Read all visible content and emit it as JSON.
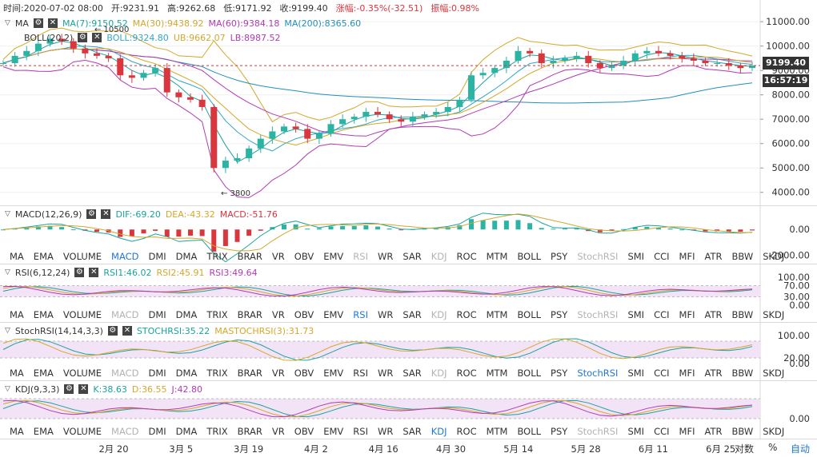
{
  "info": {
    "time": "时间:2020-07-02 08:00",
    "open": "开:9231.91",
    "high": "高:9262.68",
    "low": "低:9171.92",
    "close": "收:9199.40",
    "change": "涨幅:-0.35%(-32.51)",
    "amplitude": "振幅:0.98%"
  },
  "ma_legend": {
    "name": "MA",
    "ma7": "MA(7):9150.52",
    "ma30": "MA(30):9438.92",
    "ma60": "MA(60):9384.18",
    "ma200": "MA(200):8365.60"
  },
  "boll_legend": {
    "name": "BOLL(20,2)",
    "boll": "BOLL:9324.80",
    "ub": "UB:9662.07",
    "lb": "LB:8987.52"
  },
  "annotations": {
    "high": "← 10500",
    "low": "← 3800"
  },
  "price_tag": "9199.40",
  "time_tag": "16:57:19",
  "macd_legend": {
    "name": "MACD(12,26,9)",
    "dif": "DIF:-69.20",
    "dea": "DEA:-43.32",
    "macd": "MACD:-51.76"
  },
  "rsi_legend": {
    "name": "RSI(6,12,24)",
    "rsi1": "RSI1:46.02",
    "rsi2": "RSI2:45.91",
    "rsi3": "RSI3:49.64"
  },
  "stoch_legend": {
    "name": "StochRSI(14,14,3,3)",
    "stoch": "STOCHRSI:35.22",
    "ma": "MASTOCHRSI(3):31.73"
  },
  "kdj_legend": {
    "name": "KDJ(9,3,3)",
    "k": "K:38.63",
    "d": "D:36.55",
    "j": "J:42.80"
  },
  "tab_rows": [
    {
      "active": "MACD",
      "disabled": [
        "RSI",
        "KDJ",
        "StochRSI"
      ]
    },
    {
      "active": "RSI",
      "disabled": [
        "MACD",
        "KDJ",
        "StochRSI"
      ]
    },
    {
      "active": "StochRSI",
      "disabled": [
        "MACD",
        "KDJ"
      ]
    },
    {
      "active": "KDJ",
      "disabled": [
        "MACD",
        "StochRSI"
      ]
    }
  ],
  "tab_labels": [
    "MA",
    "EMA",
    "VOLUME",
    "MACD",
    "DMI",
    "DMA",
    "TRIX",
    "BRAR",
    "VR",
    "OBV",
    "EMV",
    "RSI",
    "WR",
    "SAR",
    "KDJ",
    "ROC",
    "MTM",
    "BOLL",
    "PSY",
    "StochRSI",
    "SMI",
    "CCI",
    "MFI",
    "ATR",
    "BBW",
    "SKDJ"
  ],
  "bottom": {
    "log": "对数",
    "percent": "%",
    "auto": "自动"
  },
  "colors": {
    "up": "#2bb3a3",
    "down": "#d9363e",
    "ma7": "#1ba39c",
    "ma30": "#d4a72c",
    "ma60": "#b23ab5",
    "ma200": "#1f8fbf",
    "boll": "#30a6c9",
    "link": "#1e78d6"
  },
  "chart_data": [
    {
      "type": "candlestick",
      "title": "",
      "x_ticks": [
        "2月 20",
        "3月 5",
        "3月 19",
        "4月 2",
        "4月 16",
        "4月 30",
        "5月 14",
        "5月 28",
        "6月 11",
        "6月 25"
      ],
      "y_ticks": [
        "11000.00",
        "10000.00",
        "9000.00",
        "8000.00",
        "7000.00",
        "6000.00",
        "5000.00",
        "4000.00"
      ],
      "ylim": [
        3500,
        11300
      ],
      "series_values": {
        "close_approx": [
          9300,
          9600,
          9800,
          10100,
          10300,
          10200,
          9900,
          9700,
          9600,
          9500,
          8800,
          8700,
          8900,
          9100,
          8100,
          7900,
          7800,
          7500,
          5000,
          5300,
          5400,
          5800,
          6200,
          6500,
          6700,
          6600,
          6200,
          6400,
          6800,
          7000,
          7100,
          7300,
          7200,
          7000,
          6900,
          7100,
          7200,
          7300,
          7500,
          7800,
          8800,
          8900,
          9100,
          9400,
          9800,
          9700,
          9300,
          9400,
          9500,
          9600,
          9300,
          9100,
          9200,
          9400,
          9700,
          9800,
          9700,
          9600,
          9500,
          9400,
          9300,
          9300,
          9200,
          9100,
          9200
        ],
        "note_levels": {
          "high": 10500,
          "low": 3800,
          "last": 9199.4
        }
      }
    },
    {
      "type": "bar",
      "title": "MACD(12,26,9)",
      "y_ticks": [
        "0.00",
        "-2000.00"
      ],
      "ylim": [
        -2600,
        700
      ]
    },
    {
      "type": "line",
      "title": "RSI(6,12,24)",
      "y_ticks": [
        "100.00",
        "70.00",
        "30.00",
        "0.00"
      ],
      "ylim": [
        0,
        100
      ]
    },
    {
      "type": "line",
      "title": "StochRSI(14,14,3,3)",
      "y_ticks": [
        "100.00",
        "20.00",
        "0.00"
      ],
      "ylim": [
        0,
        100
      ]
    },
    {
      "type": "line",
      "title": "KDJ(9,3,3)",
      "y_ticks": [
        "0.00"
      ],
      "ylim": [
        -20,
        120
      ]
    }
  ]
}
